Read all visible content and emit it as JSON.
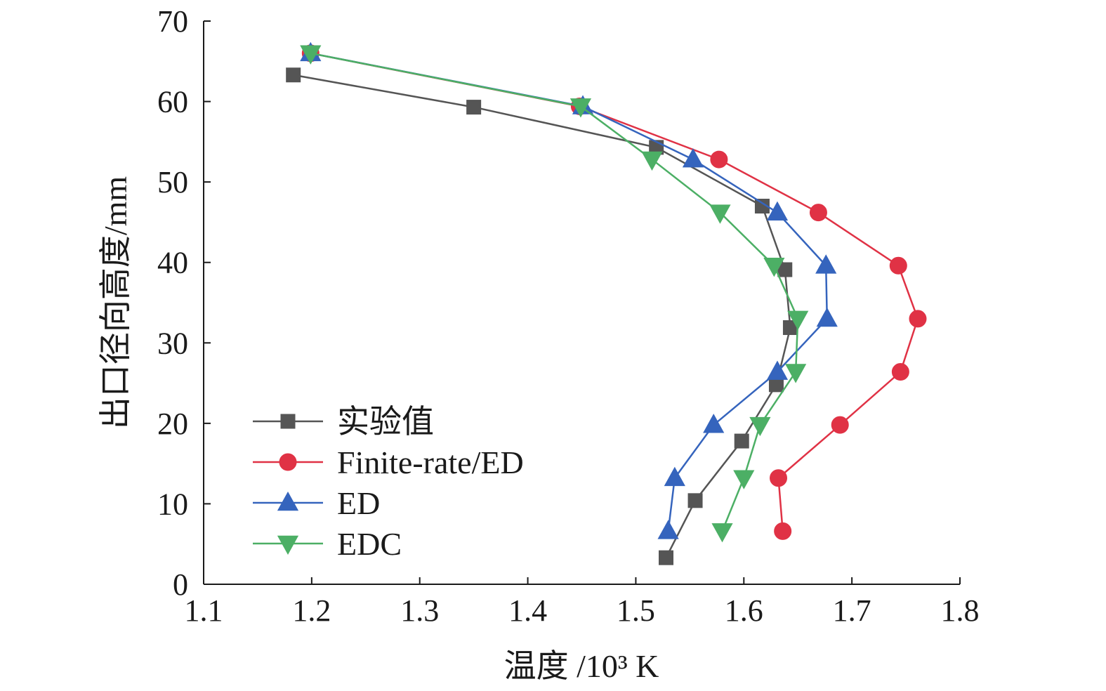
{
  "chart_data": {
    "type": "line",
    "title": "",
    "xlabel": "温度 /10³ K",
    "ylabel": "出口径向高度/mm",
    "xlim": [
      1.1,
      1.8
    ],
    "ylim": [
      0,
      70
    ],
    "xticks": [
      "1.1",
      "1.2",
      "1.3",
      "1.4",
      "1.5",
      "1.6",
      "1.7",
      "1.8"
    ],
    "yticks": [
      "0",
      "10",
      "20",
      "30",
      "40",
      "50",
      "60",
      "70"
    ],
    "grid": false,
    "legend_position": "bottom-left",
    "series": [
      {
        "name": "实验值",
        "marker": "square",
        "color": "#555555",
        "x": [
          1.528,
          1.555,
          1.598,
          1.63,
          1.643,
          1.638,
          1.617,
          1.519,
          1.35,
          1.183
        ],
        "y": [
          3.3,
          10.4,
          17.8,
          24.8,
          31.9,
          39.1,
          47.0,
          54.3,
          59.3,
          63.3
        ]
      },
      {
        "name": "Finite-rate/ED",
        "marker": "circle",
        "color": "#e03245",
        "x": [
          1.636,
          1.632,
          1.689,
          1.745,
          1.761,
          1.743,
          1.669,
          1.577,
          1.448,
          1.199
        ],
        "y": [
          6.6,
          13.2,
          19.8,
          26.4,
          33.0,
          39.6,
          46.2,
          52.8,
          59.4,
          66.0
        ]
      },
      {
        "name": "ED",
        "marker": "triangle-up",
        "color": "#3564bd",
        "x": [
          1.53,
          1.536,
          1.572,
          1.631,
          1.677,
          1.676,
          1.631,
          1.553,
          1.451,
          1.199
        ],
        "y": [
          6.6,
          13.2,
          19.8,
          26.4,
          33.0,
          39.6,
          46.2,
          52.8,
          59.4,
          66.0
        ]
      },
      {
        "name": "EDC",
        "marker": "triangle-down",
        "color": "#4caf65",
        "x": [
          1.58,
          1.6,
          1.615,
          1.648,
          1.65,
          1.628,
          1.578,
          1.515,
          1.449,
          1.199
        ],
        "y": [
          6.6,
          13.2,
          19.8,
          26.4,
          33.0,
          39.6,
          46.2,
          52.8,
          59.4,
          66.0
        ]
      }
    ]
  }
}
